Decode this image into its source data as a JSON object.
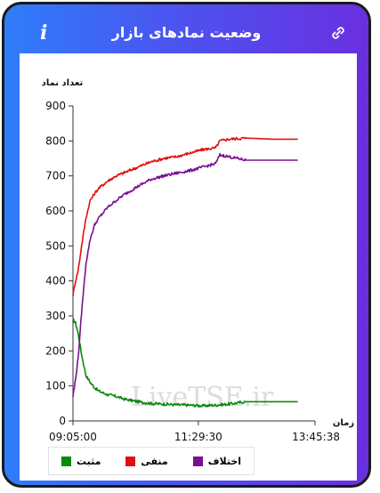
{
  "header": {
    "title": "وضعیت نمادهای بازار",
    "info_icon": "info-icon",
    "link_icon": "link-icon"
  },
  "chart_data": {
    "type": "line",
    "ylabel": "تعداد نماد",
    "xlabel": "زمان",
    "ylim": [
      0,
      900
    ],
    "yticks": [
      0,
      100,
      200,
      300,
      400,
      500,
      600,
      700,
      800,
      900
    ],
    "xticks": [
      "09:05:00",
      "11:29:30",
      "13:45:38"
    ],
    "watermark": "LiveTSE.ir",
    "grid": false,
    "legend_position": "bottom-left",
    "series": [
      {
        "name": "مثبت",
        "color": "#0a8a0a",
        "x_minutes": [
          0,
          3,
          6,
          10,
          15,
          20,
          25,
          30,
          40,
          50,
          60,
          75,
          90,
          105,
          120,
          135,
          150,
          165,
          180,
          200,
          230,
          260
        ],
        "values": [
          290,
          280,
          250,
          190,
          130,
          110,
          95,
          85,
          75,
          70,
          62,
          55,
          50,
          48,
          46,
          45,
          43,
          45,
          48,
          55,
          55,
          55
        ]
      },
      {
        "name": "منفی",
        "color": "#e01010",
        "x_minutes": [
          0,
          3,
          6,
          10,
          15,
          20,
          25,
          30,
          40,
          50,
          60,
          75,
          90,
          105,
          120,
          135,
          150,
          165,
          170,
          180,
          200,
          230,
          260
        ],
        "values": [
          360,
          400,
          430,
          500,
          580,
          630,
          650,
          665,
          685,
          700,
          710,
          725,
          740,
          750,
          755,
          765,
          775,
          780,
          800,
          805,
          808,
          805,
          805
        ]
      },
      {
        "name": "اختلاف",
        "color": "#7a1090",
        "x_minutes": [
          0,
          3,
          6,
          10,
          15,
          20,
          25,
          30,
          40,
          50,
          60,
          75,
          90,
          105,
          120,
          135,
          150,
          165,
          170,
          180,
          200,
          230,
          260
        ],
        "values": [
          70,
          120,
          180,
          310,
          450,
          520,
          560,
          580,
          610,
          630,
          648,
          670,
          690,
          700,
          708,
          715,
          725,
          735,
          760,
          755,
          745,
          745,
          745
        ]
      }
    ]
  },
  "legend": [
    {
      "label": "اختلاف",
      "color": "#7a1090"
    },
    {
      "label": "منفی",
      "color": "#e01010"
    },
    {
      "label": "مثبت",
      "color": "#0a8a0a"
    }
  ]
}
